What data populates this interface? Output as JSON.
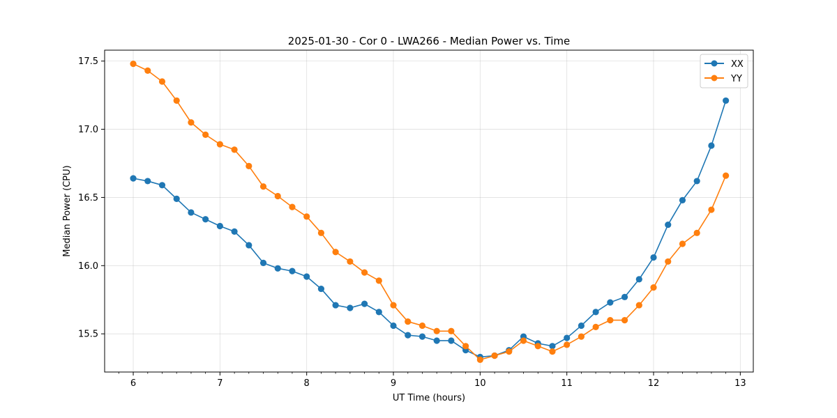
{
  "chart_data": {
    "type": "line",
    "title": "2025-01-30 - Cor 0 - LWA266 - Median Power vs. Time",
    "xlabel": "UT Time (hours)",
    "ylabel": "Median Power (CPU)",
    "xlim": [
      5.67,
      13.15
    ],
    "ylim": [
      15.22,
      17.58
    ],
    "xticks": [
      6,
      7,
      8,
      9,
      10,
      11,
      12,
      13
    ],
    "xtick_labels": [
      "6",
      "7",
      "8",
      "9",
      "10",
      "11",
      "12",
      "13"
    ],
    "yticks": [
      15.5,
      16.0,
      16.5,
      17.0,
      17.5
    ],
    "ytick_labels": [
      "15.5",
      "16.0",
      "16.5",
      "17.0",
      "17.5"
    ],
    "grid": true,
    "legend_position": "top-right",
    "x": [
      6.0,
      6.1667,
      6.3333,
      6.5,
      6.6667,
      6.8333,
      7.0,
      7.1667,
      7.3333,
      7.5,
      7.6667,
      7.8333,
      8.0,
      8.1667,
      8.3333,
      8.5,
      8.6667,
      8.8333,
      9.0,
      9.1667,
      9.3333,
      9.5,
      9.6667,
      9.8333,
      10.0,
      10.1667,
      10.3333,
      10.5,
      10.6667,
      10.8333,
      11.0,
      11.1667,
      11.3333,
      11.5,
      11.6667,
      11.8333,
      12.0,
      12.1667,
      12.3333,
      12.5,
      12.6667,
      12.8333
    ],
    "series": [
      {
        "name": "XX",
        "color": "#1f77b4",
        "values": [
          16.64,
          16.62,
          16.59,
          16.49,
          16.39,
          16.34,
          16.29,
          16.25,
          16.15,
          16.02,
          15.98,
          15.96,
          15.92,
          15.83,
          15.71,
          15.69,
          15.72,
          15.66,
          15.56,
          15.49,
          15.48,
          15.45,
          15.45,
          15.38,
          15.33,
          15.34,
          15.38,
          15.48,
          15.43,
          15.41,
          15.47,
          15.56,
          15.66,
          15.73,
          15.77,
          15.9,
          16.06,
          16.3,
          16.48,
          16.62,
          16.88,
          17.21
        ]
      },
      {
        "name": "YY",
        "color": "#ff7f0e",
        "values": [
          17.48,
          17.43,
          17.35,
          17.21,
          17.05,
          16.96,
          16.89,
          16.85,
          16.73,
          16.58,
          16.51,
          16.43,
          16.36,
          16.24,
          16.1,
          16.03,
          15.95,
          15.89,
          15.71,
          15.59,
          15.56,
          15.52,
          15.52,
          15.41,
          15.31,
          15.34,
          15.37,
          15.45,
          15.41,
          15.37,
          15.42,
          15.48,
          15.55,
          15.6,
          15.6,
          15.71,
          15.84,
          16.03,
          16.16,
          16.24,
          16.41,
          16.66
        ]
      }
    ]
  }
}
